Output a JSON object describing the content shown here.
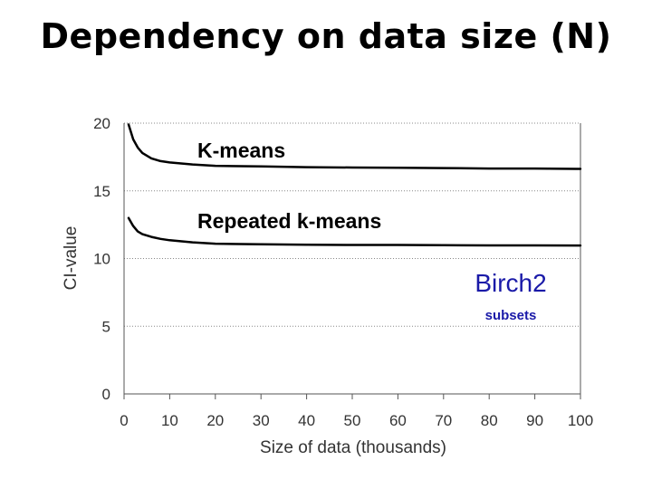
{
  "title": "Dependency on data size (N)",
  "chart_data": {
    "type": "line",
    "xlabel": "Size of data (thousands)",
    "ylabel": "CI-value",
    "xlim": [
      0,
      100
    ],
    "ylim": [
      0,
      20
    ],
    "xticks": [
      0,
      10,
      20,
      30,
      40,
      50,
      60,
      70,
      80,
      90,
      100
    ],
    "yticks": [
      0,
      5,
      10,
      15,
      20
    ],
    "grid": "horizontal dotted",
    "annotations": [
      "Birch2",
      "subsets"
    ],
    "x": [
      1,
      2,
      3,
      4,
      6,
      8,
      10,
      15,
      20,
      30,
      40,
      50,
      60,
      70,
      80,
      90,
      100
    ],
    "series": [
      {
        "name": "K-means",
        "values": [
          19.9,
          18.8,
          18.2,
          17.8,
          17.4,
          17.2,
          17.1,
          16.95,
          16.85,
          16.8,
          16.75,
          16.72,
          16.7,
          16.68,
          16.65,
          16.65,
          16.62
        ]
      },
      {
        "name": "Repeated k-means",
        "values": [
          13.0,
          12.4,
          12.0,
          11.8,
          11.6,
          11.45,
          11.35,
          11.2,
          11.1,
          11.05,
          11.02,
          11.0,
          11.0,
          10.98,
          10.97,
          10.97,
          10.96
        ]
      }
    ],
    "colors": {
      "line": "#000000",
      "annotation": "#1a1aa8",
      "grid": "#888888"
    }
  }
}
